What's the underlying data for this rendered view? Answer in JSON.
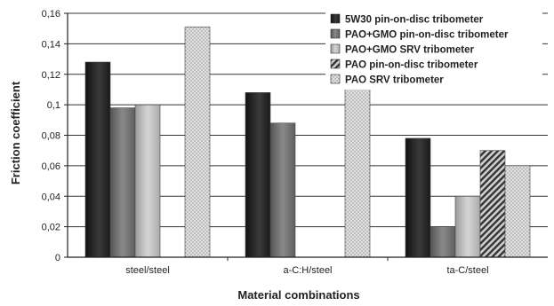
{
  "chart_data": {
    "type": "bar",
    "title": "",
    "xlabel": "Material combinations",
    "ylabel": "Friction coefficient",
    "ylim": [
      0,
      0.16
    ],
    "yticks": [
      "0",
      "0,02",
      "0,04",
      "0,06",
      "0,08",
      "0,1",
      "0,12",
      "0,14",
      "0,16"
    ],
    "categories": [
      "steel/steel",
      "a-C:H/steel",
      "ta-C/steel"
    ],
    "grid": true,
    "legend_position": "top-right",
    "series": [
      {
        "name": "5W30  pin-on-disc tribometer",
        "values": [
          0.128,
          0.108,
          0.078
        ],
        "fill": "dark",
        "color": "#2a2a2a"
      },
      {
        "name": "PAO+GMO  pin-on-disc tribometer",
        "values": [
          0.098,
          0.088,
          0.02
        ],
        "fill": "medium",
        "color": "#7a7a7a"
      },
      {
        "name": "PAO+GMO SRV tribometer",
        "values": [
          0.1,
          null,
          0.04
        ],
        "fill": "light",
        "color": "#c4c4c4"
      },
      {
        "name": "PAO pin-on-disc tribometer",
        "values": [
          null,
          null,
          0.07
        ],
        "fill": "hatched",
        "color": "#5a5a5a"
      },
      {
        "name": "PAO SRV tribometer",
        "values": [
          0.151,
          0.128,
          0.06
        ],
        "fill": "dotted",
        "color": "#d8d8d8"
      }
    ]
  }
}
